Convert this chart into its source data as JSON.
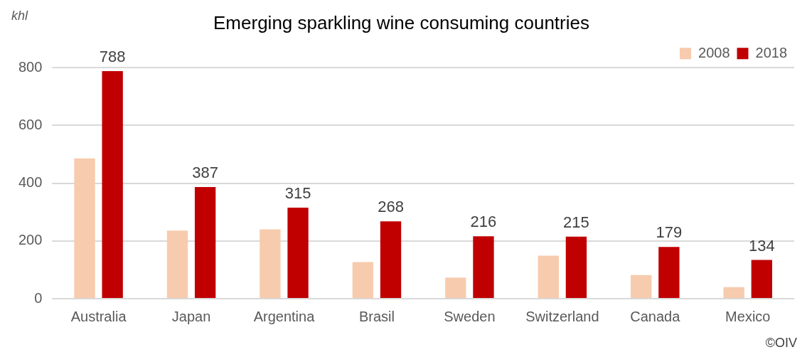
{
  "chart_data": {
    "type": "bar",
    "title": "Emerging sparkling wine consuming countries",
    "ylabel": "khl",
    "categories": [
      "Australia",
      "Japan",
      "Argentina",
      "Brasil",
      "Sweden",
      "Switzerland",
      "Canada",
      "Mexico"
    ],
    "series": [
      {
        "name": "2008",
        "color": "#f7cbad",
        "values": [
          486,
          236,
          240,
          127,
          73,
          149,
          82,
          40
        ]
      },
      {
        "name": "2018",
        "color": "#c00000",
        "values": [
          788,
          387,
          315,
          268,
          216,
          215,
          179,
          134
        ],
        "value_labels": [
          "788",
          "387",
          "315",
          "268",
          "216",
          "215",
          "179",
          "134"
        ]
      }
    ],
    "ylim": [
      0,
      800
    ],
    "yticks": [
      0,
      200,
      400,
      600,
      800
    ],
    "grid": "y",
    "legend": "top right",
    "annotations": [
      "©OIV"
    ]
  }
}
